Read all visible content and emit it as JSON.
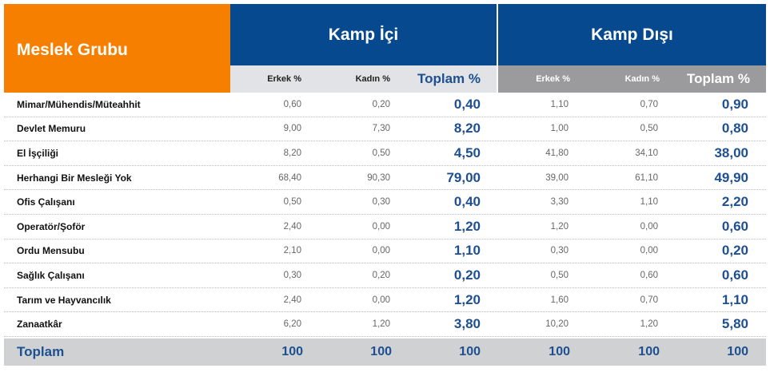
{
  "header": {
    "name_col": "Meslek Grubu",
    "groups": [
      {
        "title": "Kamp İçi",
        "cols": [
          "Erkek %",
          "Kadın %",
          "Toplam %"
        ]
      },
      {
        "title": "Kamp Dışı",
        "cols": [
          "Erkek %",
          "Kadın %",
          "Toplam  %"
        ]
      }
    ]
  },
  "rows": [
    {
      "name": "Mimar/Mühendis/Müteahhit",
      "v": [
        "0,60",
        "0,20",
        "0,40",
        "1,10",
        "0,70",
        "0,90"
      ]
    },
    {
      "name": "Devlet Memuru",
      "v": [
        "9,00",
        "7,30",
        "8,20",
        "1,00",
        "0,50",
        "0,80"
      ]
    },
    {
      "name": "El İşçiliği",
      "v": [
        "8,20",
        "0,50",
        "4,50",
        "41,80",
        "34,10",
        "38,00"
      ]
    },
    {
      "name": "Herhangi Bir Mesleği Yok",
      "v": [
        "68,40",
        "90,30",
        "79,00",
        "39,00",
        "61,10",
        "49,90"
      ]
    },
    {
      "name": "Ofis Çalışanı",
      "v": [
        "0,50",
        "0,30",
        "0,40",
        "3,30",
        "1,10",
        "2,20"
      ]
    },
    {
      "name": "Operatör/Şoför",
      "v": [
        "2,40",
        "0,00",
        "1,20",
        "1,20",
        "0,00",
        "0,60"
      ]
    },
    {
      "name": "Ordu Mensubu",
      "v": [
        "2,10",
        "0,00",
        "1,10",
        "0,30",
        "0,00",
        "0,20"
      ]
    },
    {
      "name": "Sağlık Çalışanı",
      "v": [
        "0,30",
        "0,20",
        "0,20",
        "0,50",
        "0,60",
        "0,60"
      ]
    },
    {
      "name": "Tarım ve Hayvancılık",
      "v": [
        "2,40",
        "0,00",
        "1,20",
        "1,60",
        "0,70",
        "1,10"
      ]
    },
    {
      "name": "Zanaatkâr",
      "v": [
        "6,20",
        "1,20",
        "3,80",
        "10,20",
        "1,20",
        "5,80"
      ]
    }
  ],
  "total": {
    "name": "Toplam",
    "v": [
      "100",
      "100",
      "100",
      "100",
      "100",
      "100"
    ]
  }
}
